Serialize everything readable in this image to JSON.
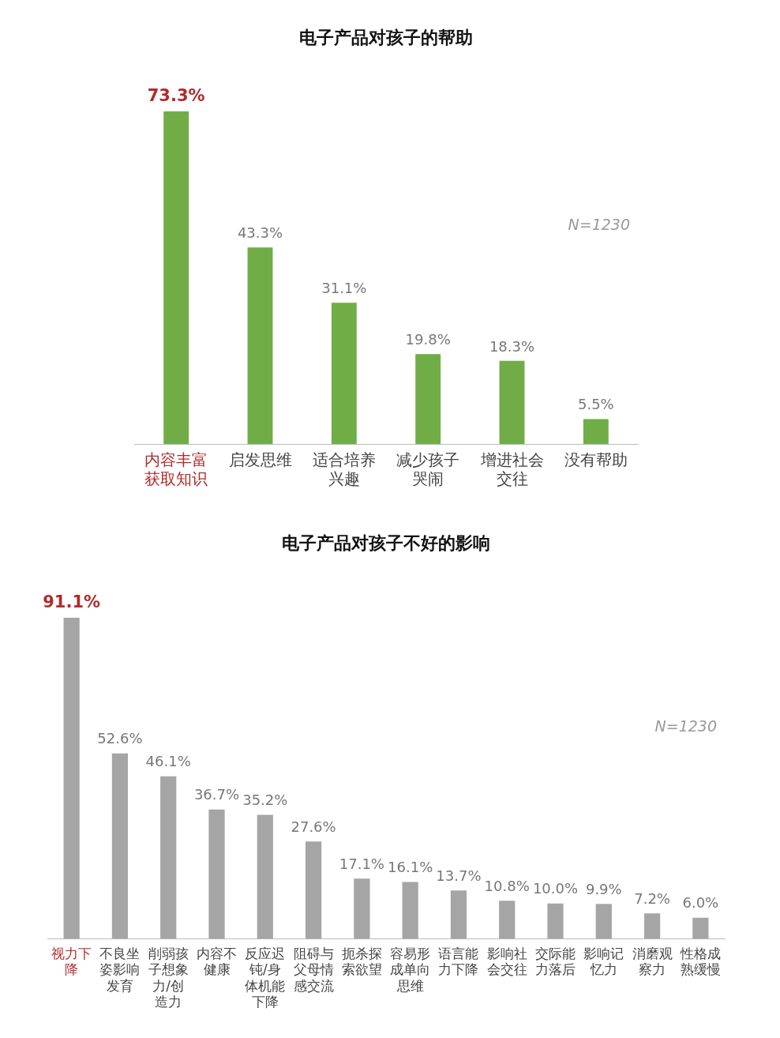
{
  "chart_data": [
    {
      "type": "bar",
      "title": "电子产品对孩子的帮助",
      "categories": [
        "内容丰富获取知识",
        "启发思维",
        "适合培养兴趣",
        "减少孩子哭闹",
        "增进社会交往",
        "没有帮助"
      ],
      "values": [
        73.3,
        43.3,
        31.1,
        19.8,
        18.3,
        5.5
      ],
      "color": "#70ad47",
      "data_labels": true,
      "value_labels": [
        "73.3%",
        "43.3%",
        "31.1%",
        "19.8%",
        "18.3%",
        "5.5%"
      ],
      "annotations": [
        "N=1230"
      ],
      "grid": false,
      "legend": false
    },
    {
      "type": "bar",
      "title": "电子产品对孩子不好的影响",
      "categories": [
        "视力下降",
        "不良坐姿影响发育",
        "削弱孩子想象力/创造力",
        "内容不健康",
        "反应迟钝/身体机能下降",
        "阻碍与父母情感交流",
        "扼杀探索欲望",
        "容易形成单向思维",
        "语言能力下降",
        "影响社会交往",
        "交际能力落后",
        "影响记忆力",
        "消磨观察力",
        "性格成熟缓慢"
      ],
      "values": [
        91.1,
        52.6,
        46.1,
        36.7,
        35.2,
        27.6,
        17.1,
        16.1,
        13.7,
        10.8,
        10.0,
        9.9,
        7.2,
        6.0
      ],
      "color": "#a5a5a5",
      "data_labels": true,
      "value_labels": [
        "91.1%",
        "52.6%",
        "46.1%",
        "36.7%",
        "35.2%",
        "27.6%",
        "17.1%",
        "16.1%",
        "13.7%",
        "10.8%",
        "10.0%",
        "9.9%",
        "7.2%",
        "6.0%"
      ],
      "annotations": [
        "N=1230"
      ],
      "grid": false,
      "legend": false
    }
  ]
}
